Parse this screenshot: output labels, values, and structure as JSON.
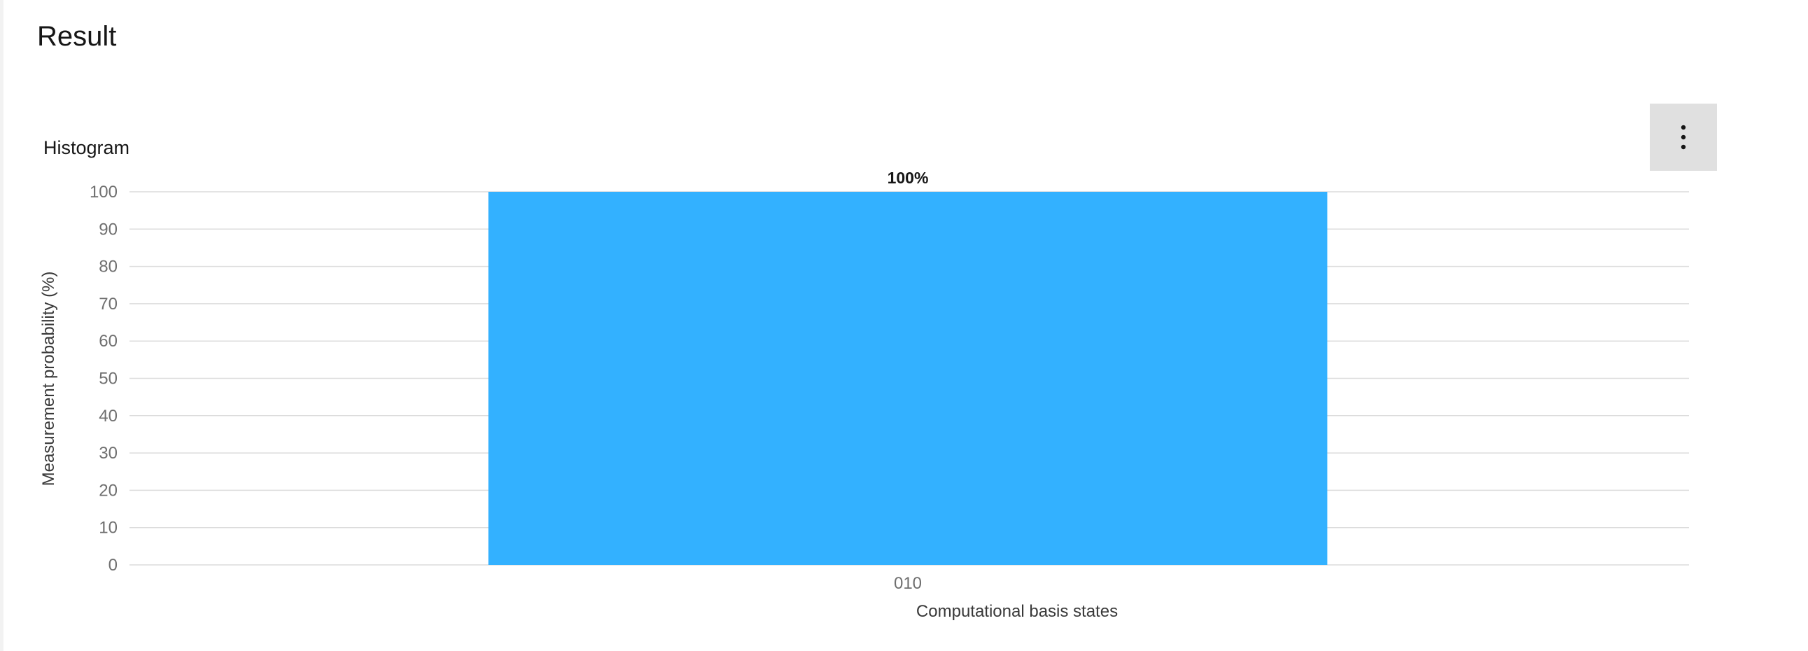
{
  "page": {
    "title": "Result"
  },
  "toolbar": {
    "overflow_icon": "overflow-menu-vertical-icon"
  },
  "chart_data": {
    "type": "bar",
    "title": "Histogram",
    "categories": [
      "010"
    ],
    "values": [
      100
    ],
    "value_labels": [
      "100%"
    ],
    "xlabel": "Computational basis states",
    "ylabel": "Measurement probability (%)",
    "ylim": [
      0,
      100
    ],
    "yticks": [
      0,
      10,
      20,
      30,
      40,
      50,
      60,
      70,
      80,
      90,
      100
    ],
    "grid": true,
    "legend": "none",
    "bar_color": "#33b1ff"
  }
}
